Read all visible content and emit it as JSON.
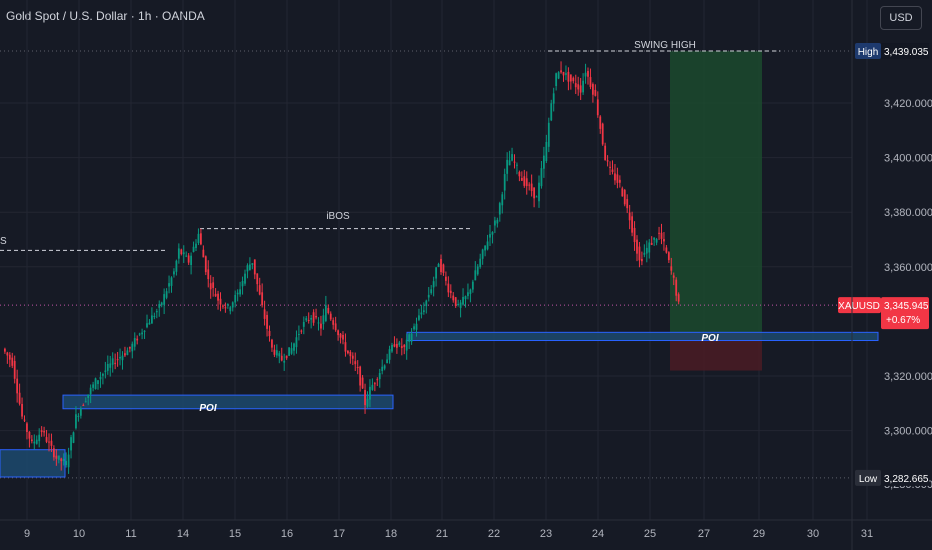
{
  "title": "Gold Spot / U.S. Dollar · 1h · OANDA",
  "currency_button": "USD",
  "chart_data": {
    "type": "candlestick",
    "symbol": "XAUUSD",
    "ylim": [
      3270,
      3450
    ],
    "y_ticks": [
      "3,420.000",
      "3,400.000",
      "3,380.000",
      "3,360.000",
      "3,320.000",
      "3,300.000"
    ],
    "x_ticks": [
      "9",
      "10",
      "11",
      "14",
      "15",
      "16",
      "17",
      "18",
      "21",
      "22",
      "23",
      "24",
      "25",
      "27",
      "29",
      "30",
      "31"
    ],
    "price_path": [
      [
        0,
        3330
      ],
      [
        4,
        3325
      ],
      [
        8,
        3305
      ],
      [
        12,
        3295
      ],
      [
        16,
        3300
      ],
      [
        22,
        3290
      ],
      [
        26,
        3288
      ],
      [
        30,
        3305
      ],
      [
        34,
        3312
      ],
      [
        38,
        3318
      ],
      [
        45,
        3325
      ],
      [
        52,
        3330
      ],
      [
        58,
        3338
      ],
      [
        64,
        3345
      ],
      [
        70,
        3358
      ],
      [
        72,
        3366
      ],
      [
        76,
        3362
      ],
      [
        80,
        3372
      ],
      [
        84,
        3355
      ],
      [
        88,
        3348
      ],
      [
        92,
        3345
      ],
      [
        96,
        3350
      ],
      [
        100,
        3360
      ],
      [
        102,
        3362
      ],
      [
        106,
        3345
      ],
      [
        110,
        3330
      ],
      [
        114,
        3326
      ],
      [
        118,
        3330
      ],
      [
        122,
        3338
      ],
      [
        126,
        3342
      ],
      [
        130,
        3338
      ],
      [
        132,
        3345
      ],
      [
        136,
        3338
      ],
      [
        140,
        3330
      ],
      [
        145,
        3322
      ],
      [
        148,
        3310
      ],
      [
        150,
        3315
      ],
      [
        156,
        3325
      ],
      [
        160,
        3332
      ],
      [
        164,
        3330
      ],
      [
        168,
        3338
      ],
      [
        172,
        3345
      ],
      [
        176,
        3355
      ],
      [
        178,
        3362
      ],
      [
        182,
        3352
      ],
      [
        186,
        3345
      ],
      [
        190,
        3350
      ],
      [
        194,
        3360
      ],
      [
        198,
        3370
      ],
      [
        202,
        3378
      ],
      [
        206,
        3398
      ],
      [
        208,
        3400
      ],
      [
        212,
        3392
      ],
      [
        216,
        3388
      ],
      [
        218,
        3385
      ],
      [
        220,
        3395
      ],
      [
        222,
        3405
      ],
      [
        224,
        3420
      ],
      [
        226,
        3430
      ],
      [
        228,
        3432
      ],
      [
        232,
        3428
      ],
      [
        236,
        3425
      ],
      [
        238,
        3432
      ],
      [
        242,
        3422
      ],
      [
        246,
        3400
      ],
      [
        248,
        3395
      ],
      [
        252,
        3390
      ],
      [
        256,
        3378
      ],
      [
        260,
        3362
      ],
      [
        264,
        3368
      ],
      [
        268,
        3372
      ],
      [
        270,
        3368
      ],
      [
        274,
        3355
      ],
      [
        276,
        3346
      ]
    ],
    "last_index": 276,
    "annotations": {
      "swing_high": "SWING HIGH",
      "ibos": "iBOS",
      "bos_cut": "S",
      "poi_1": "POI",
      "poi_2": "POI",
      "poi_3": "POI"
    },
    "levels": {
      "high": {
        "label": "High",
        "value": "3,439.035",
        "price": 3439.035
      },
      "low": {
        "label": "Low",
        "value": "3,282.665",
        "price": 3282.665
      },
      "low_hidden": "3,280.000",
      "current": {
        "symbol": "XAUUSD",
        "value": "3,345.945",
        "change": "+0.67%",
        "price": 3345.945
      },
      "ibos_price": 3374,
      "bos_price": 3366
    },
    "zones": {
      "poi_1": [
        3308,
        3313
      ],
      "poi_2": [
        3283,
        3293
      ],
      "poi_3": [
        3333,
        3336
      ],
      "long_tp": [
        3336,
        3439
      ],
      "long_sl": [
        3322,
        3336
      ]
    },
    "colors": {
      "up": "#089981",
      "down": "#f23645",
      "poi_fill": "#1c4a6e",
      "poi_border": "#2962ff",
      "target_fill": "#1b4a2e",
      "stop_fill": "#4a1c25",
      "current_tag": "#f23645",
      "label_tag": "#1e3a6e",
      "grid": "#232632"
    }
  }
}
